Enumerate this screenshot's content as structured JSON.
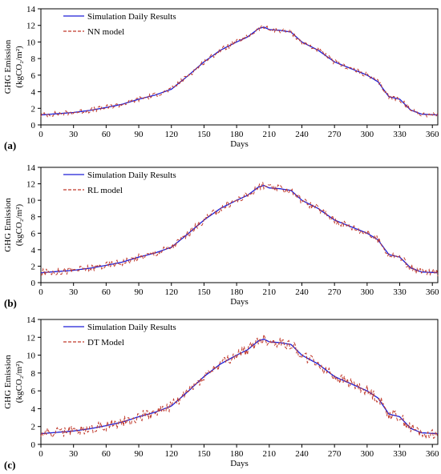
{
  "chart_data": [
    {
      "type": "line",
      "panel_label": "(a)",
      "xlabel": "Days",
      "ylabel_line1": "GHG Emission",
      "ylabel_line2": "(kgCO₂/m²)",
      "xlim": [
        0,
        365
      ],
      "ylim": [
        0,
        14
      ],
      "xticks": [
        0,
        30,
        60,
        90,
        120,
        150,
        180,
        210,
        240,
        270,
        300,
        330,
        360
      ],
      "yticks": [
        0,
        2,
        4,
        6,
        8,
        10,
        12,
        14
      ],
      "grid": false,
      "legend_position": "top-left",
      "x": [
        0,
        15,
        30,
        45,
        60,
        75,
        90,
        105,
        120,
        135,
        150,
        165,
        180,
        190,
        200,
        205,
        210,
        220,
        230,
        240,
        255,
        270,
        285,
        300,
        310,
        320,
        330,
        340,
        350,
        365
      ],
      "series": [
        {
          "name": "Simulation Daily Results",
          "color": "#1f1fd6",
          "style": "solid",
          "values": [
            1.2,
            1.35,
            1.5,
            1.75,
            2.1,
            2.5,
            3.1,
            3.6,
            4.3,
            5.9,
            7.6,
            9.0,
            10.0,
            10.6,
            11.6,
            11.8,
            11.5,
            11.4,
            11.2,
            10.0,
            9.0,
            7.6,
            6.8,
            6.0,
            5.2,
            3.4,
            3.1,
            1.8,
            1.3,
            1.2
          ]
        },
        {
          "name": "NN model",
          "color": "#c0392b",
          "style": "dashed",
          "noise": 0.3,
          "values": [
            1.2,
            1.35,
            1.5,
            1.75,
            2.1,
            2.5,
            3.1,
            3.6,
            4.3,
            5.9,
            7.6,
            9.0,
            10.0,
            10.6,
            11.6,
            11.8,
            11.5,
            11.4,
            11.2,
            10.0,
            9.0,
            7.6,
            6.8,
            6.0,
            5.2,
            3.4,
            3.1,
            1.8,
            1.3,
            1.2
          ]
        }
      ]
    },
    {
      "type": "line",
      "panel_label": "(b)",
      "xlabel": "Days",
      "ylabel_line1": "GHG Emission",
      "ylabel_line2": "(kgCO₂/m²)",
      "xlim": [
        0,
        365
      ],
      "ylim": [
        0,
        14
      ],
      "xticks": [
        0,
        30,
        60,
        90,
        120,
        150,
        180,
        210,
        240,
        270,
        300,
        330,
        360
      ],
      "yticks": [
        0,
        2,
        4,
        6,
        8,
        10,
        12,
        14
      ],
      "grid": false,
      "legend_position": "top-left",
      "x": [
        0,
        15,
        30,
        45,
        60,
        75,
        90,
        105,
        120,
        135,
        150,
        165,
        180,
        190,
        200,
        205,
        210,
        220,
        230,
        240,
        255,
        270,
        285,
        300,
        310,
        320,
        330,
        340,
        350,
        365
      ],
      "series": [
        {
          "name": "Simulation Daily Results",
          "color": "#1f1fd6",
          "style": "solid",
          "values": [
            1.2,
            1.35,
            1.5,
            1.75,
            2.1,
            2.5,
            3.1,
            3.6,
            4.3,
            5.9,
            7.6,
            9.0,
            10.0,
            10.6,
            11.6,
            11.8,
            11.5,
            11.4,
            11.2,
            10.0,
            9.0,
            7.6,
            6.8,
            6.0,
            5.2,
            3.4,
            3.1,
            1.8,
            1.3,
            1.2
          ]
        },
        {
          "name": "RL model",
          "color": "#c0392b",
          "style": "dashed",
          "noise": 0.45,
          "values": [
            1.2,
            1.35,
            1.5,
            1.75,
            2.1,
            2.5,
            3.1,
            3.6,
            4.3,
            5.9,
            7.6,
            9.0,
            10.0,
            10.6,
            11.6,
            11.8,
            11.5,
            11.4,
            11.2,
            10.0,
            9.0,
            7.6,
            6.8,
            6.0,
            5.2,
            3.4,
            3.1,
            1.8,
            1.3,
            1.2
          ]
        }
      ]
    },
    {
      "type": "line",
      "panel_label": "(c)",
      "xlabel": "Days",
      "ylabel_line1": "GHG Emission",
      "ylabel_line2": "(kgCO₂/m²)",
      "xlim": [
        0,
        365
      ],
      "ylim": [
        0,
        14
      ],
      "xticks": [
        0,
        30,
        60,
        90,
        120,
        150,
        180,
        210,
        240,
        270,
        300,
        330,
        360
      ],
      "yticks": [
        0,
        2,
        4,
        6,
        8,
        10,
        12,
        14
      ],
      "grid": false,
      "legend_position": "top-left",
      "x": [
        0,
        15,
        30,
        45,
        60,
        75,
        90,
        105,
        120,
        135,
        150,
        165,
        180,
        190,
        200,
        205,
        210,
        220,
        230,
        240,
        255,
        270,
        285,
        300,
        310,
        320,
        330,
        340,
        350,
        365
      ],
      "series": [
        {
          "name": "Simulation Daily Results",
          "color": "#1f1fd6",
          "style": "solid",
          "values": [
            1.2,
            1.35,
            1.5,
            1.75,
            2.1,
            2.5,
            3.1,
            3.6,
            4.3,
            5.9,
            7.6,
            9.0,
            10.0,
            10.6,
            11.6,
            11.8,
            11.5,
            11.4,
            11.2,
            10.0,
            9.0,
            7.6,
            6.8,
            6.0,
            5.2,
            3.4,
            3.1,
            1.8,
            1.3,
            1.2
          ]
        },
        {
          "name": "DT Model",
          "color": "#c0392b",
          "style": "dashed",
          "noise": 0.6,
          "values": [
            1.2,
            1.35,
            1.5,
            1.75,
            2.1,
            2.5,
            3.1,
            3.6,
            4.3,
            5.9,
            7.6,
            9.0,
            10.0,
            10.6,
            11.6,
            11.8,
            11.5,
            11.4,
            11.2,
            10.0,
            9.0,
            7.6,
            6.8,
            6.0,
            5.2,
            3.4,
            3.1,
            1.8,
            1.3,
            1.2
          ]
        }
      ]
    }
  ]
}
